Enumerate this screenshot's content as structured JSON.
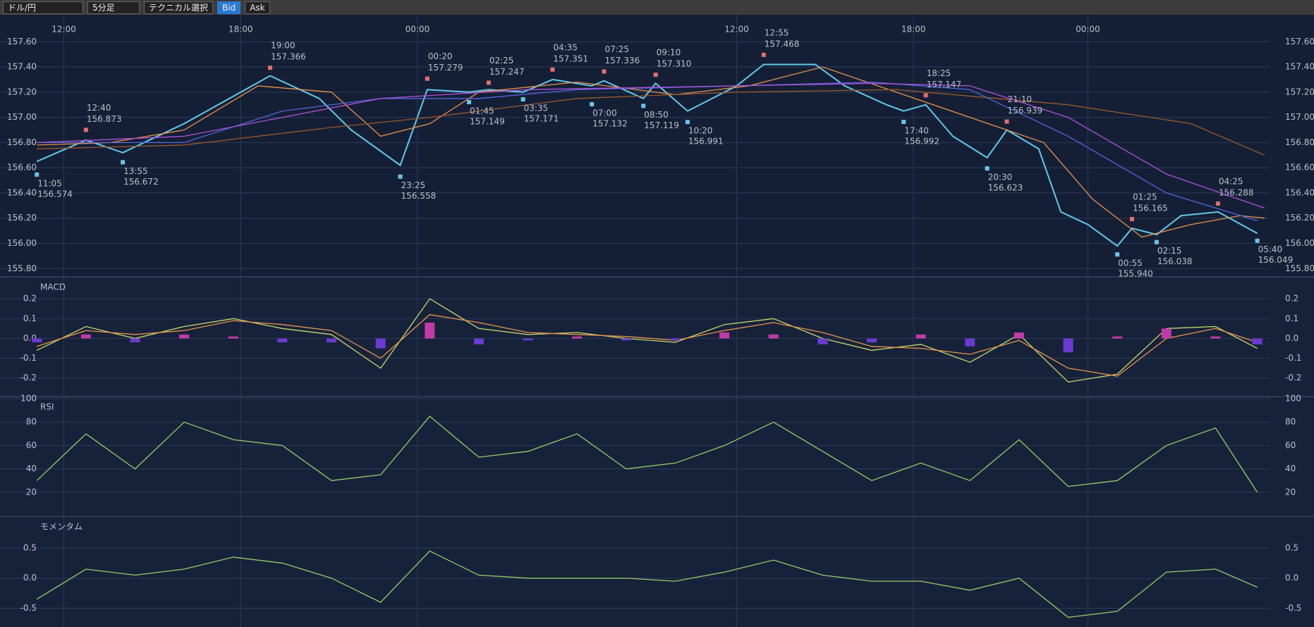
{
  "toolbar": {
    "pair": "ドル/円",
    "timeframe": "5分足",
    "technical": "テクニカル選択",
    "bid": "Bid",
    "ask": "Ask"
  },
  "chart_data": [
    {
      "type": "line",
      "xlim": [
        -15,
        502
      ],
      "xticks": [
        {
          "value": 11,
          "label": "12:00"
        },
        {
          "value": 83,
          "label": "18:00"
        },
        {
          "value": 155,
          "label": "00:00"
        },
        {
          "value": 285,
          "label": "12:00"
        },
        {
          "value": 357,
          "label": "18:00"
        },
        {
          "value": 428,
          "label": "00:00"
        }
      ],
      "ylim": [
        155.74,
        157.73
      ],
      "yticks": [
        {
          "value": 155.8,
          "label": "155.80"
        },
        {
          "value": 156,
          "label": "156.00"
        },
        {
          "value": 156.2,
          "label": "156.20"
        },
        {
          "value": 156.4,
          "label": "156.40"
        },
        {
          "value": 156.6,
          "label": "156.60"
        },
        {
          "value": 156.8,
          "label": "156.80"
        },
        {
          "value": 157,
          "label": "157.00"
        },
        {
          "value": 157.2,
          "label": "157.20"
        },
        {
          "value": 157.4,
          "label": "157.40"
        },
        {
          "value": 157.6,
          "label": "157.60"
        }
      ],
      "grid": true,
      "x": [
        0,
        20,
        35,
        60,
        95,
        115,
        128,
        148,
        159,
        176,
        184,
        198,
        210,
        226,
        231,
        247,
        252,
        265,
        285,
        296,
        317,
        329,
        346,
        353,
        362,
        373,
        387,
        395,
        408,
        417,
        428,
        440,
        446,
        456,
        466,
        481,
        497
      ],
      "series": [
        {
          "color": "#62c9ea",
          "values": [
            156.65,
            156.82,
            156.72,
            156.95,
            157.33,
            157.15,
            156.9,
            156.62,
            157.22,
            157.2,
            157.22,
            157.2,
            157.3,
            157.25,
            157.29,
            157.15,
            157.27,
            157.05,
            157.25,
            157.42,
            157.42,
            157.25,
            157.1,
            157.05,
            157.1,
            156.85,
            156.68,
            156.9,
            156.75,
            156.25,
            156.15,
            155.98,
            156.12,
            156.07,
            156.22,
            156.25,
            156.08
          ]
        },
        {
          "color": "#e8944a",
          "x": [
            0,
            30,
            60,
            90,
            120,
            140,
            160,
            180,
            220,
            260,
            290,
            320,
            350,
            380,
            410,
            430,
            450,
            470,
            490,
            500
          ],
          "values": [
            156.78,
            156.8,
            156.9,
            157.25,
            157.2,
            156.85,
            156.95,
            157.2,
            157.28,
            157.18,
            157.25,
            157.4,
            157.2,
            157.0,
            156.8,
            156.35,
            156.05,
            156.15,
            156.22,
            156.2
          ]
        },
        {
          "color": "#9a5a2a",
          "x": [
            0,
            60,
            120,
            160,
            220,
            285,
            350,
            420,
            470,
            500
          ],
          "values": [
            156.75,
            156.78,
            156.92,
            157.0,
            157.15,
            157.2,
            157.22,
            157.1,
            156.95,
            156.7
          ]
        },
        {
          "color": "#5566dd",
          "x": [
            0,
            60,
            100,
            140,
            180,
            220,
            285,
            340,
            380,
            420,
            460,
            497
          ],
          "values": [
            156.8,
            156.8,
            157.05,
            157.15,
            157.15,
            157.22,
            157.25,
            157.28,
            157.22,
            156.85,
            156.4,
            156.18
          ]
        },
        {
          "color": "#b052d8",
          "x": [
            0,
            60,
            100,
            140,
            200,
            285,
            340,
            380,
            420,
            460,
            500
          ],
          "values": [
            156.8,
            156.85,
            157.0,
            157.15,
            157.22,
            157.25,
            157.27,
            157.25,
            157.0,
            156.55,
            156.28
          ]
        }
      ],
      "annotations": [
        {
          "kind": "high",
          "time": "12:40",
          "x": 20,
          "value": 156.873,
          "label": "156.873"
        },
        {
          "kind": "high",
          "time": "19:00",
          "x": 95,
          "value": 157.366,
          "label": "157.366"
        },
        {
          "kind": "high",
          "time": "00:20",
          "x": 159,
          "value": 157.279,
          "label": "157.279"
        },
        {
          "kind": "high",
          "time": "02:25",
          "x": 184,
          "value": 157.247,
          "label": "157.247"
        },
        {
          "kind": "high",
          "time": "04:35",
          "x": 210,
          "value": 157.351,
          "label": "157.351"
        },
        {
          "kind": "high",
          "time": "07:25",
          "x": 231,
          "value": 157.336,
          "label": "157.336"
        },
        {
          "kind": "high",
          "time": "09:10",
          "x": 252,
          "value": 157.31,
          "label": "157.310"
        },
        {
          "kind": "high",
          "time": "12:55",
          "x": 296,
          "value": 157.468,
          "label": "157.468"
        },
        {
          "kind": "high",
          "time": "18:25",
          "x": 362,
          "value": 157.147,
          "label": "157.147"
        },
        {
          "kind": "high",
          "time": "21:10",
          "x": 395,
          "value": 156.939,
          "label": "156.939"
        },
        {
          "kind": "high",
          "time": "01:25",
          "x": 446,
          "value": 156.165,
          "label": "156.165"
        },
        {
          "kind": "high",
          "time": "04:25",
          "x": 481,
          "value": 156.288,
          "label": "156.288"
        },
        {
          "kind": "low",
          "time": "11:05",
          "x": 0,
          "value": 156.574,
          "label": "156.574"
        },
        {
          "kind": "low",
          "time": "13:55",
          "x": 35,
          "value": 156.672,
          "label": "156.672"
        },
        {
          "kind": "low",
          "time": "23:25",
          "x": 148,
          "value": 156.558,
          "label": "156.558"
        },
        {
          "kind": "low",
          "time": "01:45",
          "x": 176,
          "value": 157.149,
          "label": "157.149"
        },
        {
          "kind": "low",
          "time": "03:35",
          "x": 198,
          "value": 157.171,
          "label": "157.171"
        },
        {
          "kind": "low",
          "time": "07:00",
          "x": 226,
          "value": 157.132,
          "label": "157.132"
        },
        {
          "kind": "low",
          "time": "08:50",
          "x": 247,
          "value": 157.119,
          "label": "157.119"
        },
        {
          "kind": "low",
          "time": "10:20",
          "x": 265,
          "value": 156.991,
          "label": "156.991"
        },
        {
          "kind": "low",
          "time": "17:40",
          "x": 353,
          "value": 156.992,
          "label": "156.992"
        },
        {
          "kind": "low",
          "time": "20:30",
          "x": 387,
          "value": 156.623,
          "label": "156.623"
        },
        {
          "kind": "low",
          "time": "00:55",
          "x": 440,
          "value": 155.94,
          "label": "155.940"
        },
        {
          "kind": "low",
          "time": "02:15",
          "x": 456,
          "value": 156.038,
          "label": "156.038"
        },
        {
          "kind": "low",
          "time": "05:40",
          "x": 497,
          "value": 156.049,
          "label": "156.049"
        }
      ]
    },
    {
      "type": "line",
      "title": "MACD",
      "xlim": [
        -15,
        502
      ],
      "ylim": [
        -0.29,
        0.3
      ],
      "yticks": [
        -0.2,
        -0.1,
        {
          "value": 0,
          "label": "0.0"
        },
        0.1,
        0.2
      ],
      "grid": true,
      "x": [
        0,
        20,
        40,
        60,
        80,
        100,
        120,
        140,
        160,
        180,
        200,
        220,
        240,
        260,
        280,
        300,
        320,
        340,
        360,
        380,
        400,
        420,
        440,
        460,
        480,
        497
      ],
      "series": [
        {
          "color": "#c8d86a",
          "values": [
            -0.06,
            0.06,
            0.0,
            0.06,
            0.1,
            0.05,
            0.02,
            -0.15,
            0.2,
            0.05,
            0.02,
            0.03,
            0.0,
            -0.02,
            0.07,
            0.1,
            0.0,
            -0.06,
            -0.03,
            -0.12,
            0.02,
            -0.22,
            -0.18,
            0.05,
            0.06,
            -0.05
          ]
        },
        {
          "color": "#e8944a",
          "values": [
            -0.04,
            0.04,
            0.02,
            0.04,
            0.09,
            0.07,
            0.04,
            -0.1,
            0.12,
            0.08,
            0.03,
            0.02,
            0.01,
            -0.01,
            0.04,
            0.08,
            0.03,
            -0.04,
            -0.05,
            -0.08,
            -0.01,
            -0.15,
            -0.19,
            0.0,
            0.05,
            -0.02
          ]
        },
        {
          "type": "bar",
          "color": "#c23aa8",
          "negative_color": "#6a3ad0",
          "values": [
            -0.02,
            0.02,
            -0.02,
            0.02,
            0.01,
            -0.02,
            -0.02,
            -0.05,
            0.08,
            -0.03,
            -0.01,
            0.01,
            -0.01,
            -0.01,
            0.03,
            0.02,
            -0.03,
            -0.02,
            0.02,
            -0.04,
            0.03,
            -0.07,
            0.01,
            0.05,
            0.01,
            -0.03
          ]
        }
      ]
    },
    {
      "type": "line",
      "title": "RSI",
      "xlim": [
        -15,
        502
      ],
      "ylim": [
        0,
        100
      ],
      "yticks": [
        20,
        40,
        60,
        80,
        100
      ],
      "grid": true,
      "x": [
        0,
        20,
        40,
        60,
        80,
        100,
        120,
        140,
        160,
        180,
        200,
        220,
        240,
        260,
        280,
        300,
        320,
        340,
        360,
        380,
        400,
        420,
        440,
        460,
        480,
        497
      ],
      "series": [
        {
          "color": "#9ccc65",
          "values": [
            30,
            70,
            40,
            80,
            65,
            60,
            30,
            35,
            85,
            50,
            55,
            70,
            40,
            45,
            60,
            80,
            55,
            30,
            45,
            30,
            65,
            25,
            30,
            60,
            75,
            20
          ]
        }
      ]
    },
    {
      "type": "line",
      "title": "モメンタム",
      "xlim": [
        -15,
        502
      ],
      "ylim": [
        -0.81,
        0.99
      ],
      "yticks": [
        -0.5,
        {
          "value": 0,
          "label": "0.0"
        },
        0.5
      ],
      "grid": true,
      "x": [
        0,
        20,
        40,
        60,
        80,
        100,
        120,
        140,
        160,
        180,
        200,
        220,
        240,
        260,
        280,
        300,
        320,
        340,
        360,
        380,
        400,
        420,
        440,
        460,
        480,
        497
      ],
      "series": [
        {
          "color": "#9ccc65",
          "values": [
            -0.35,
            0.15,
            0.05,
            0.15,
            0.35,
            0.25,
            0.0,
            -0.4,
            0.45,
            0.05,
            0.0,
            0.0,
            0.0,
            -0.05,
            0.1,
            0.3,
            0.05,
            -0.05,
            -0.05,
            -0.2,
            0.0,
            -0.65,
            -0.55,
            0.1,
            0.15,
            -0.15
          ]
        }
      ]
    }
  ]
}
